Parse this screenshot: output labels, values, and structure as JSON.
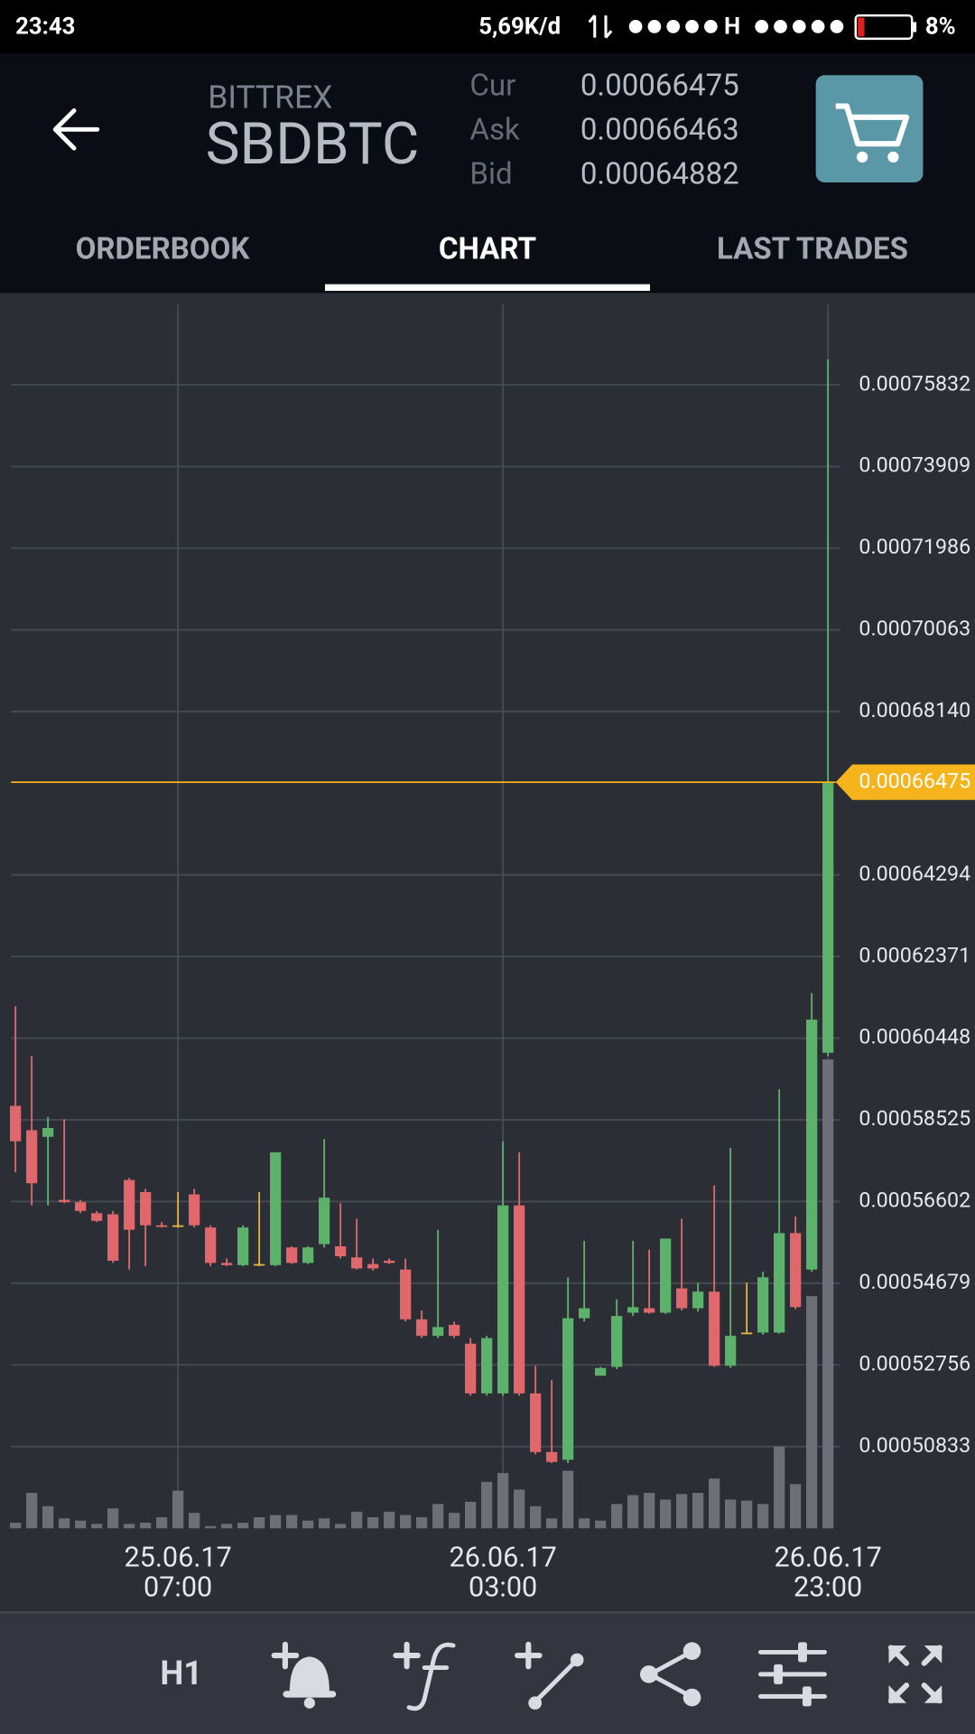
{
  "status_bar": {
    "time": "23:43",
    "network": "5,69K/d",
    "carrier": "H",
    "battery": "8%"
  },
  "header": {
    "exchange": "BITTREX",
    "pair": "SBDBTC",
    "quotes": [
      {
        "label": "Cur",
        "value": "0.00066475"
      },
      {
        "label": "Ask",
        "value": "0.00066463"
      },
      {
        "label": "Bid",
        "value": "0.00064882"
      }
    ]
  },
  "tabs": [
    "ORDERBOOK",
    "CHART",
    "LAST TRADES"
  ],
  "active_tab": 1,
  "chart_data": {
    "type": "candlestick",
    "categories": [
      null,
      null,
      null,
      null,
      null,
      null,
      null,
      null,
      null,
      null,
      "25.06.17 07:00",
      null,
      null,
      null,
      null,
      null,
      null,
      null,
      null,
      null,
      null,
      null,
      null,
      null,
      null,
      null,
      null,
      null,
      null,
      null,
      "26.06.17 03:00",
      null,
      null,
      null,
      null,
      null,
      null,
      null,
      null,
      null,
      null,
      null,
      null,
      null,
      null,
      null,
      null,
      null,
      null,
      null,
      "26.06.17 23:00"
    ],
    "open": [
      0.00058854,
      0.00058281,
      0.00058125,
      0.00056641,
      0.00056588,
      0.00056328,
      0.00056302,
      0.00057109,
      0.00056823,
      0.00056042,
      0.00056042,
      0.00056771,
      0.0005599,
      0.00055156,
      0.00055104,
      0.0005513,
      0.00055104,
      0.00055521,
      0.00055156,
      0.00055599,
      0.00055547,
      0.00055286,
      0.0005513,
      0.00055208,
      0.00055,
      0.00053828,
      0.00053438,
      0.00053698,
      0.00053255,
      0.00052084,
      0.00052084,
      0.0005651,
      0.00052084,
      0.00050703,
      0.00050521,
      0.00053854,
      0.000525,
      0.00052708,
      0.00053984,
      0.00054089,
      0.00053984,
      0.00054557,
      0.00054089,
      0.00054479,
      0.00052735,
      0.00053516,
      0.00053516,
      0.00053516,
      0.00055859,
      0.00055,
      0.00060104
    ],
    "high": [
      0.00061198,
      0.00060026,
      0.00058594,
      0.00058541,
      0.00056641,
      0.0005638,
      0.0005638,
      0.00057161,
      0.00056901,
      0.0005612,
      0.00056823,
      0.00056901,
      0.00056042,
      0.0005526,
      0.00056042,
      0.00056823,
      0.0005776,
      0.00055547,
      0.00055547,
      0.00058073,
      0.00056562,
      0.00056198,
      0.0005526,
      0.0005526,
      0.0005526,
      0.00054037,
      0.00055937,
      0.00053776,
      0.00053386,
      0.00053438,
      0.00058021,
      0.0005776,
      0.00052735,
      0.00052396,
      0.00054818,
      0.00055677,
      0.00052708,
      0.00054297,
      0.00055677,
      0.00055469,
      0.00055729,
      0.00056198,
      0.00054688,
      0.00056979,
      0.00057864,
      0.00054688,
      0.00054948,
      0.00059245,
      0.0005625,
      0.0006151,
      0.00076431
    ],
    "low": [
      0.00057292,
      0.0005651,
      0.0005651,
      0.00056562,
      0.00056328,
      0.0005612,
      0.00055156,
      0.00055,
      0.00055078,
      0.0005599,
      0.0005599,
      0.0005599,
      0.00055078,
      0.00055078,
      0.00055078,
      0.00055078,
      0.00055078,
      0.0005513,
      0.0005513,
      0.00055521,
      0.0005526,
      0.00055,
      0.00054974,
      0.0005513,
      0.00053776,
      0.00053386,
      0.00053386,
      0.00053386,
      0.00052031,
      0.00052031,
      0.00052031,
      0.00052031,
      0.00050651,
      0.00050443,
      0.00050443,
      0.00053776,
      0.000525,
      0.00052656,
      0.00053906,
      0.00053958,
      0.00053958,
      0.00054037,
      0.0005401,
      0.00052708,
      0.00052682,
      0.0005349,
      0.00053464,
      0.0005349,
      0.00054063,
      0.00054948,
      0.00060026
    ],
    "close": [
      0.00058021,
      0.00057031,
      0.00058333,
      0.00056588,
      0.0005638,
      0.00056146,
      0.00055208,
      0.00055937,
      0.00056042,
      0.00056016,
      0.00056042,
      0.00056042,
      0.00055156,
      0.00055104,
      0.0005599,
      0.0005513,
      0.0005776,
      0.00055156,
      0.00055521,
      0.00056693,
      0.00055312,
      0.00055026,
      0.00055026,
      0.00055156,
      0.00053828,
      0.00053438,
      0.00053646,
      0.00053438,
      0.00052084,
      0.00053386,
      0.0005651,
      0.00052084,
      0.00050703,
      0.00050469,
      0.00053854,
      0.00054089,
      0.00052682,
      0.00053906,
      0.00054115,
      0.00053984,
      0.00055729,
      0.00054089,
      0.00054479,
      0.00052735,
      0.00053438,
      0.00053516,
      0.00054818,
      0.00055859,
      0.00054115,
      0.00060885,
      0.00066475
    ],
    "volume": [
      5,
      32,
      20,
      9,
      7,
      4,
      18,
      4,
      5,
      10,
      34,
      14,
      2,
      4,
      5,
      10,
      12,
      12,
      7,
      9,
      4,
      15,
      10,
      15,
      12,
      10,
      22,
      14,
      24,
      42,
      50,
      35,
      20,
      9,
      52,
      9,
      7,
      22,
      30,
      32,
      26,
      31,
      32,
      45,
      26,
      25,
      22,
      74,
      40,
      210,
      424
    ],
    "volume_lim": [
      0,
      1107
    ],
    "ylim": [
      0.00048907,
      0.00077733
    ],
    "yticks": [
      0.00075832,
      0.00073909,
      0.00071986,
      0.00070063,
      {
        "value": 0.0006814,
        "label": "0.00068140"
      },
      0.00064294,
      0.00062371,
      0.00060448,
      0.00058525,
      0.00056602,
      0.00054679,
      0.00052756,
      0.00050833
    ],
    "current_price": 0.00066475,
    "grid": true,
    "up_color": "#5db26b",
    "down_color": "#e0676b",
    "doji_color": "#e8b33d",
    "volume_color": "#6c6f77",
    "current_price_color": "#f6b41c"
  },
  "toolbar": {
    "interval": "H1"
  }
}
